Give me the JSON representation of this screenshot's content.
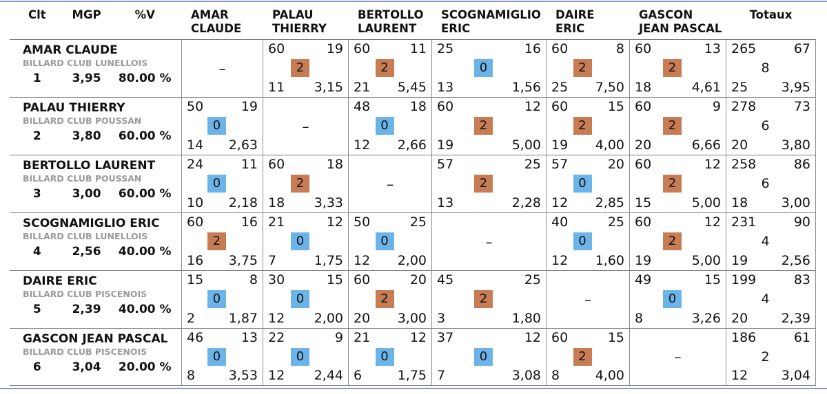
{
  "theme": {
    "accent_line": "#8496d2",
    "win_badge": "#c77c54",
    "loss_badge": "#6cb4e8",
    "club_text": "#9a9a9a"
  },
  "diagonal_dash": "–",
  "header": {
    "clt": "Clt",
    "mgp": "MGP",
    "pv": "%V",
    "totals": "Totaux",
    "opponents": [
      [
        "AMAR",
        "CLAUDE"
      ],
      [
        "PALAU",
        "THIERRY"
      ],
      [
        "BERTOLLO",
        "LAURENT"
      ],
      [
        "SCOGNAMIGLIO",
        "ERIC"
      ],
      [
        "DAIRE",
        "ERIC"
      ],
      [
        "GASCON",
        "JEAN PASCAL"
      ]
    ]
  },
  "rows": [
    {
      "name": "AMAR CLAUDE",
      "club": "BILLARD CLUB LUNELLOIS",
      "clt": "1",
      "mgp": "3,95",
      "pv": "80.00 %",
      "matches": [
        null,
        {
          "points": "60",
          "serie": "19",
          "mp": "2",
          "innings": "11",
          "average": "3,15"
        },
        {
          "points": "60",
          "serie": "11",
          "mp": "2",
          "innings": "21",
          "average": "5,45"
        },
        {
          "points": "25",
          "serie": "16",
          "mp": "0",
          "innings": "13",
          "average": "1,56"
        },
        {
          "points": "60",
          "serie": "8",
          "mp": "2",
          "innings": "25",
          "average": "7,50"
        },
        {
          "points": "60",
          "serie": "13",
          "mp": "2",
          "innings": "18",
          "average": "4,61"
        }
      ],
      "totals": {
        "points": "265",
        "serie": "67",
        "mp": "8",
        "innings": "25",
        "average": "3,95"
      }
    },
    {
      "name": "PALAU THIERRY",
      "club": "BILLARD CLUB POUSSAN",
      "clt": "2",
      "mgp": "3,80",
      "pv": "60.00 %",
      "matches": [
        {
          "points": "50",
          "serie": "19",
          "mp": "0",
          "innings": "14",
          "average": "2,63"
        },
        null,
        {
          "points": "48",
          "serie": "18",
          "mp": "0",
          "innings": "12",
          "average": "2,66"
        },
        {
          "points": "60",
          "serie": "12",
          "mp": "2",
          "innings": "19",
          "average": "5,00"
        },
        {
          "points": "60",
          "serie": "15",
          "mp": "2",
          "innings": "19",
          "average": "4,00"
        },
        {
          "points": "60",
          "serie": "9",
          "mp": "2",
          "innings": "20",
          "average": "6,66"
        }
      ],
      "totals": {
        "points": "278",
        "serie": "73",
        "mp": "6",
        "innings": "20",
        "average": "3,80"
      }
    },
    {
      "name": "BERTOLLO LAURENT",
      "club": "BILLARD CLUB POUSSAN",
      "clt": "3",
      "mgp": "3,00",
      "pv": "60.00 %",
      "matches": [
        {
          "points": "24",
          "serie": "11",
          "mp": "0",
          "innings": "10",
          "average": "2,18"
        },
        {
          "points": "60",
          "serie": "18",
          "mp": "2",
          "innings": "18",
          "average": "3,33"
        },
        null,
        {
          "points": "57",
          "serie": "25",
          "mp": "2",
          "innings": "13",
          "average": "2,28"
        },
        {
          "points": "57",
          "serie": "20",
          "mp": "0",
          "innings": "12",
          "average": "2,85"
        },
        {
          "points": "60",
          "serie": "12",
          "mp": "2",
          "innings": "15",
          "average": "5,00"
        }
      ],
      "totals": {
        "points": "258",
        "serie": "86",
        "mp": "6",
        "innings": "18",
        "average": "3,00"
      }
    },
    {
      "name": "SCOGNAMIGLIO ERIC",
      "club": "BILLARD CLUB LUNELLOIS",
      "clt": "4",
      "mgp": "2,56",
      "pv": "40.00 %",
      "matches": [
        {
          "points": "60",
          "serie": "16",
          "mp": "2",
          "innings": "16",
          "average": "3,75"
        },
        {
          "points": "21",
          "serie": "12",
          "mp": "0",
          "innings": "7",
          "average": "1,75"
        },
        {
          "points": "50",
          "serie": "25",
          "mp": "0",
          "innings": "12",
          "average": "2,00"
        },
        null,
        {
          "points": "40",
          "serie": "25",
          "mp": "0",
          "innings": "12",
          "average": "1,60"
        },
        {
          "points": "60",
          "serie": "12",
          "mp": "2",
          "innings": "19",
          "average": "5,00"
        }
      ],
      "totals": {
        "points": "231",
        "serie": "90",
        "mp": "4",
        "innings": "19",
        "average": "2,56"
      }
    },
    {
      "name": "DAIRE ERIC",
      "club": "BILLARD CLUB PISCENOIS",
      "clt": "5",
      "mgp": "2,39",
      "pv": "40.00 %",
      "matches": [
        {
          "points": "15",
          "serie": "8",
          "mp": "0",
          "innings": "2",
          "average": "1,87"
        },
        {
          "points": "30",
          "serie": "15",
          "mp": "0",
          "innings": "12",
          "average": "2,00"
        },
        {
          "points": "60",
          "serie": "20",
          "mp": "2",
          "innings": "20",
          "average": "3,00"
        },
        {
          "points": "45",
          "serie": "25",
          "mp": "2",
          "innings": "3",
          "average": "1,80"
        },
        null,
        {
          "points": "49",
          "serie": "15",
          "mp": "0",
          "innings": "8",
          "average": "3,26"
        }
      ],
      "totals": {
        "points": "199",
        "serie": "83",
        "mp": "4",
        "innings": "20",
        "average": "2,39"
      }
    },
    {
      "name": "GASCON JEAN PASCAL",
      "club": "BILLARD CLUB PISCENOIS",
      "clt": "6",
      "mgp": "3,04",
      "pv": "20.00 %",
      "matches": [
        {
          "points": "46",
          "serie": "13",
          "mp": "0",
          "innings": "8",
          "average": "3,53"
        },
        {
          "points": "22",
          "serie": "9",
          "mp": "0",
          "innings": "12",
          "average": "2,44"
        },
        {
          "points": "21",
          "serie": "12",
          "mp": "0",
          "innings": "6",
          "average": "1,75"
        },
        {
          "points": "37",
          "serie": "12",
          "mp": "0",
          "innings": "7",
          "average": "3,08"
        },
        {
          "points": "60",
          "serie": "15",
          "mp": "2",
          "innings": "8",
          "average": "4,00"
        },
        null
      ],
      "totals": {
        "points": "186",
        "serie": "61",
        "mp": "2",
        "innings": "12",
        "average": "3,04"
      }
    }
  ]
}
